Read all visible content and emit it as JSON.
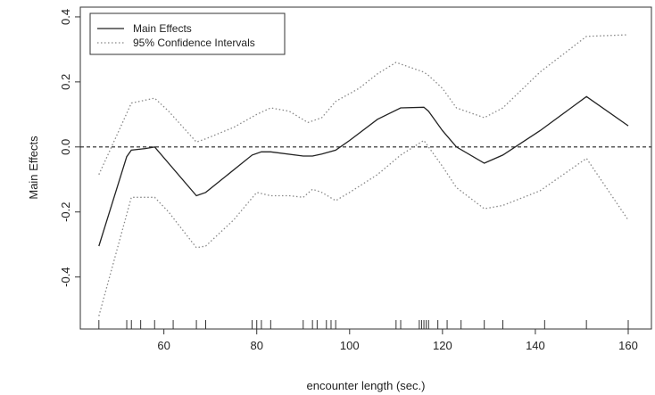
{
  "chart_data": {
    "type": "line",
    "title": "",
    "xlabel": "encounter length (sec.)",
    "ylabel": "Main Effects",
    "xlim": [
      42,
      165
    ],
    "ylim": [
      -0.56,
      0.43
    ],
    "x_ticks": [
      60,
      80,
      100,
      120,
      140,
      160
    ],
    "y_ticks": [
      -0.4,
      -0.2,
      0.0,
      0.2,
      0.4
    ],
    "x_tick_labels": [
      "60",
      "80",
      "100",
      "120",
      "140",
      "160"
    ],
    "y_tick_labels": [
      "-0.4",
      "-0.2",
      "0.0",
      "0.2",
      "0.4"
    ],
    "reference_line_y": 0.0,
    "legend": {
      "position": "top-left",
      "entries": [
        {
          "label": "Main Effects",
          "style": "solid"
        },
        {
          "label": "95% Confidence Intervals",
          "style": "dotted"
        }
      ]
    },
    "series": [
      {
        "name": "Main Effects",
        "style": "solid",
        "color": "#222222",
        "points": [
          [
            46,
            -0.305
          ],
          [
            52,
            -0.03
          ],
          [
            53,
            -0.01
          ],
          [
            56,
            -0.005
          ],
          [
            58,
            0.0
          ],
          [
            67,
            -0.15
          ],
          [
            69,
            -0.14
          ],
          [
            79,
            -0.025
          ],
          [
            81,
            -0.015
          ],
          [
            83,
            -0.015
          ],
          [
            90,
            -0.028
          ],
          [
            92,
            -0.028
          ],
          [
            94,
            -0.022
          ],
          [
            97,
            -0.01
          ],
          [
            100,
            0.02
          ],
          [
            106,
            0.085
          ],
          [
            111,
            0.12
          ],
          [
            116,
            0.122
          ],
          [
            117,
            0.11
          ],
          [
            120,
            0.05
          ],
          [
            123,
            0.0
          ],
          [
            129,
            -0.05
          ],
          [
            133,
            -0.025
          ],
          [
            141,
            0.05
          ],
          [
            151,
            0.155
          ],
          [
            160,
            0.065
          ]
        ]
      },
      {
        "name": "95% Confidence Intervals",
        "style": "dotted",
        "color": "#888888",
        "points": [
          [
            46,
            -0.085
          ],
          [
            50,
            0.04
          ],
          [
            53,
            0.135
          ],
          [
            58,
            0.15
          ],
          [
            61,
            0.11
          ],
          [
            67,
            0.015
          ],
          [
            69,
            0.025
          ],
          [
            75,
            0.06
          ],
          [
            80,
            0.1
          ],
          [
            83,
            0.12
          ],
          [
            87,
            0.11
          ],
          [
            91,
            0.075
          ],
          [
            94,
            0.09
          ],
          [
            97,
            0.14
          ],
          [
            102,
            0.18
          ],
          [
            106,
            0.225
          ],
          [
            110,
            0.26
          ],
          [
            116,
            0.23
          ],
          [
            117,
            0.22
          ],
          [
            120,
            0.18
          ],
          [
            123,
            0.12
          ],
          [
            129,
            0.09
          ],
          [
            133,
            0.12
          ],
          [
            141,
            0.23
          ],
          [
            151,
            0.34
          ],
          [
            160,
            0.345
          ]
        ]
      },
      {
        "name": "95% Confidence Intervals",
        "style": "dotted",
        "color": "#888888",
        "points": [
          [
            46,
            -0.52
          ],
          [
            53,
            -0.155
          ],
          [
            58,
            -0.155
          ],
          [
            61,
            -0.2
          ],
          [
            67,
            -0.31
          ],
          [
            69,
            -0.305
          ],
          [
            75,
            -0.225
          ],
          [
            80,
            -0.14
          ],
          [
            83,
            -0.15
          ],
          [
            87,
            -0.15
          ],
          [
            90,
            -0.155
          ],
          [
            92,
            -0.13
          ],
          [
            94,
            -0.14
          ],
          [
            97,
            -0.165
          ],
          [
            100,
            -0.14
          ],
          [
            106,
            -0.085
          ],
          [
            111,
            -0.025
          ],
          [
            116,
            0.02
          ],
          [
            117,
            0.0
          ],
          [
            120,
            -0.06
          ],
          [
            123,
            -0.125
          ],
          [
            129,
            -0.19
          ],
          [
            133,
            -0.18
          ],
          [
            141,
            -0.135
          ],
          [
            151,
            -0.035
          ],
          [
            160,
            -0.225
          ]
        ]
      }
    ],
    "rug_x": [
      46,
      52,
      53,
      55,
      58,
      62,
      67,
      69,
      79,
      80,
      81,
      83,
      90,
      92,
      93,
      95,
      96,
      97,
      110,
      111,
      115,
      115.5,
      116,
      116.5,
      117,
      119,
      121,
      124,
      129,
      133,
      142,
      151,
      160
    ]
  }
}
